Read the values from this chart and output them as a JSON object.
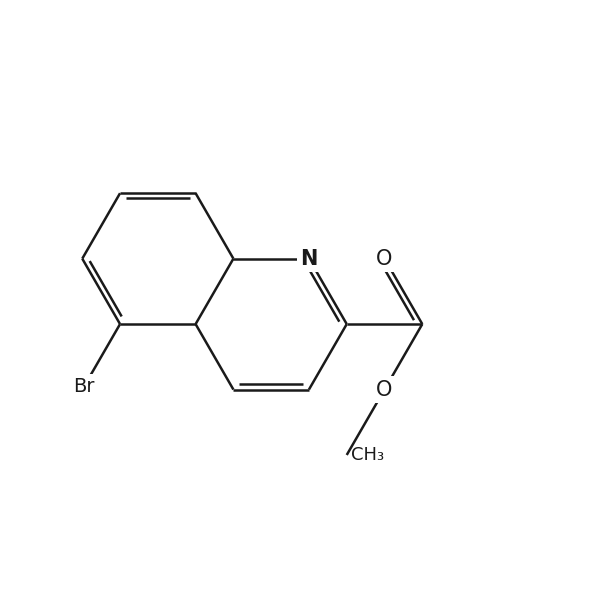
{
  "background_color": "#ffffff",
  "line_color": "#1a1a1a",
  "line_width": 1.8,
  "dbo": 0.09,
  "shrink_double": 0.1,
  "figsize": [
    6.0,
    6.0
  ],
  "dpi": 100,
  "xlim": [
    -3.2,
    4.8
  ],
  "ylim": [
    -3.5,
    3.5
  ]
}
